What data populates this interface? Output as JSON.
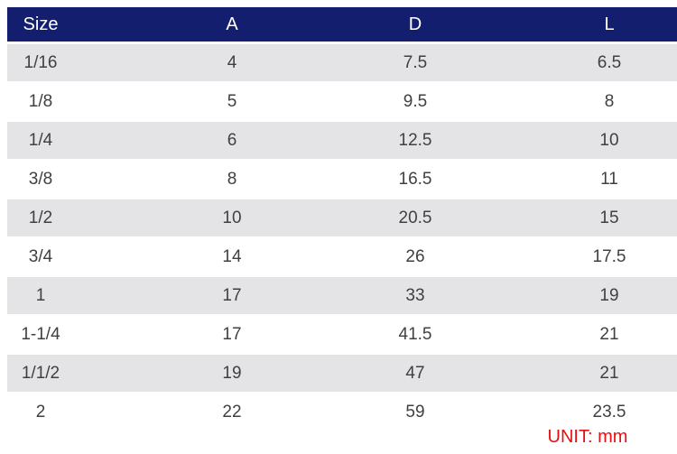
{
  "colors": {
    "header_bg": "#141e6e",
    "header_text": "#ffffff",
    "row_alt_bg": "#e4e4e6",
    "body_text": "#404040",
    "unit_text": "#e61010",
    "page_bg": "#ffffff"
  },
  "table": {
    "headers": [
      "Size",
      "A",
      "D",
      "L"
    ],
    "rows": [
      [
        "1/16",
        "4",
        "7.5",
        "6.5"
      ],
      [
        "1/8",
        "5",
        "9.5",
        "8"
      ],
      [
        "1/4",
        "6",
        "12.5",
        "10"
      ],
      [
        "3/8",
        "8",
        "16.5",
        "11"
      ],
      [
        "1/2",
        "10",
        "20.5",
        "15"
      ],
      [
        "3/4",
        "14",
        "26",
        "17.5"
      ],
      [
        "1",
        "17",
        "33",
        "19"
      ],
      [
        "1-1/4",
        "17",
        "41.5",
        "21"
      ],
      [
        "1/1/2",
        "19",
        "47",
        "21"
      ],
      [
        "2",
        "22",
        "59",
        "23.5"
      ]
    ]
  },
  "footer": {
    "unit_label": "UNIT:  mm"
  }
}
